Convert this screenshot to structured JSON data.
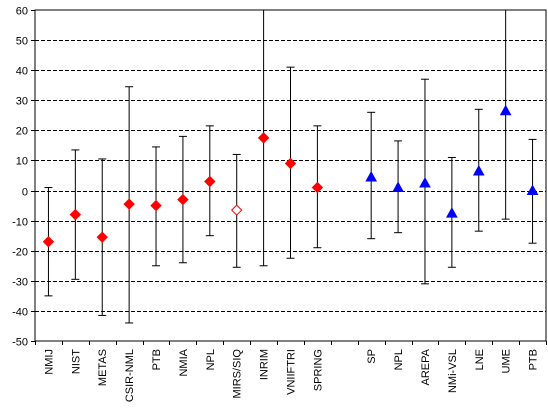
{
  "chart_data": {
    "type": "scatter",
    "title": "",
    "xlabel": "",
    "ylabel": "",
    "ylim": [
      -50,
      60
    ],
    "yticks": [
      -50,
      -40,
      -30,
      -20,
      -10,
      0,
      10,
      20,
      30,
      40,
      50,
      60
    ],
    "grid": "horizontal dashed",
    "legend": "none",
    "series": [
      {
        "marker": "diamond",
        "color": "#ff0000",
        "points": [
          {
            "category": "NMIJ",
            "value": -17,
            "low": -35,
            "high": 1,
            "filled": true
          },
          {
            "category": "NIST",
            "value": -8,
            "low": -29.5,
            "high": 13.5,
            "filled": true
          },
          {
            "category": "METAS",
            "value": -15.5,
            "low": -41.5,
            "high": 10.5,
            "filled": true
          },
          {
            "category": "CSIR-NML",
            "value": -4.5,
            "low": -44,
            "high": 34.5,
            "filled": true
          },
          {
            "category": "PTB",
            "value": -5,
            "low": -25,
            "high": 14.5,
            "filled": true
          },
          {
            "category": "NMIA",
            "value": -3,
            "low": -24,
            "high": 18,
            "filled": true
          },
          {
            "category": "NPL",
            "value": 3,
            "low": -15,
            "high": 21.5,
            "filled": true
          },
          {
            "category": "MIRS/SIQ",
            "value": -6.5,
            "low": -25.5,
            "high": 12,
            "filled": false
          },
          {
            "category": "INRIM",
            "value": 17.5,
            "low": -25,
            "high": 60,
            "filled": true
          },
          {
            "category": "VNIIFTRI",
            "value": 9,
            "low": -22.5,
            "high": 41,
            "filled": true
          },
          {
            "category": "SPRING",
            "value": 1,
            "low": -19,
            "high": 21.5,
            "filled": true
          }
        ]
      },
      {
        "marker": "triangle",
        "color": "#0000ff",
        "points": [
          {
            "category": "SP",
            "value": 4.5,
            "low": -16,
            "high": 26,
            "filled": true
          },
          {
            "category": "NPL",
            "value": 1,
            "low": -14,
            "high": 16.5,
            "filled": true
          },
          {
            "category": "AREPA",
            "value": 2.5,
            "low": -31,
            "high": 37,
            "filled": true
          },
          {
            "category": "NMi-VSL",
            "value": -7.5,
            "low": -25.5,
            "high": 11,
            "filled": true
          },
          {
            "category": "LNE",
            "value": 6.5,
            "low": -13.5,
            "high": 27,
            "filled": true
          },
          {
            "category": "UME",
            "value": 26.5,
            "low": -9.5,
            "high": 61.5,
            "filled": true
          },
          {
            "category": "PTB",
            "value": 0,
            "low": -17.5,
            "high": 17,
            "filled": true
          }
        ]
      }
    ],
    "categories": [
      "NMIJ",
      "NIST",
      "METAS",
      "CSIR-NML",
      "PTB",
      "NMIA",
      "NPL",
      "MIRS/SIQ",
      "INRIM",
      "VNIIFTRI",
      "SPRING",
      "",
      "SP",
      "NPL",
      "AREPA",
      "NMi-VSL",
      "LNE",
      "UME",
      "PTB"
    ]
  }
}
